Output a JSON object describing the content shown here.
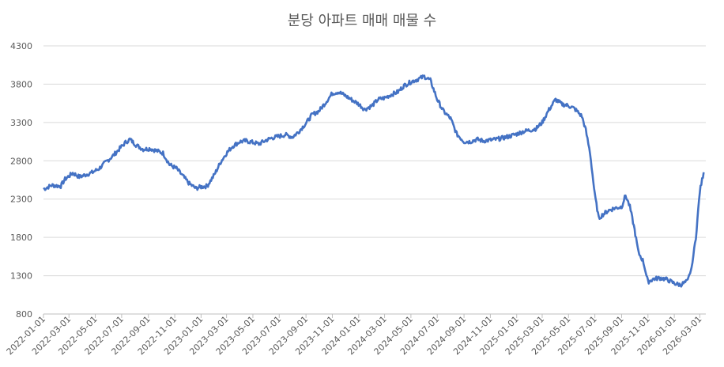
{
  "chart_data": {
    "type": "line",
    "title": "분당 아파트 매매 매물 수",
    "xlabel": "",
    "ylabel": "",
    "ylim": [
      800,
      4300
    ],
    "yticks": [
      800,
      1300,
      1800,
      2300,
      2800,
      3300,
      3800,
      4300
    ],
    "xticks": [
      "2022-01-01",
      "2022-03-01",
      "2022-05-01",
      "2022-07-01",
      "2022-09-01",
      "2022-11-01",
      "2023-01-01",
      "2023-03-01",
      "2023-05-01",
      "2023-07-01",
      "2023-09-01",
      "2023-11-01",
      "2024-01-01",
      "2024-03-01",
      "2024-05-01",
      "2024-07-01",
      "2024-09-01",
      "2024-11-01",
      "2025-01-01",
      "2025-03-01",
      "2025-05-01",
      "2025-07-01",
      "2025-09-01",
      "2025-11-01",
      "2026-01-01",
      "2026-03-01"
    ],
    "x_range": [
      "2022-01-01",
      "2026-03-15"
    ],
    "grid": true,
    "series_color": "#4472c4",
    "series": [
      {
        "x": [
          "2022-01-01",
          "2022-01-20",
          "2022-02-10",
          "2022-02-20",
          "2022-03-10",
          "2022-03-25",
          "2022-04-10",
          "2022-04-25",
          "2022-05-10",
          "2022-05-25",
          "2022-06-10",
          "2022-06-25",
          "2022-07-10",
          "2022-07-20",
          "2022-08-05",
          "2022-08-20",
          "2022-09-05",
          "2022-09-20",
          "2022-10-05",
          "2022-10-20",
          "2022-11-05",
          "2022-11-20",
          "2022-12-05",
          "2022-12-20",
          "2023-01-01",
          "2023-01-15",
          "2023-02-01",
          "2023-02-15",
          "2023-03-01",
          "2023-03-15",
          "2023-04-01",
          "2023-04-15",
          "2023-05-01",
          "2023-05-15",
          "2023-06-01",
          "2023-06-15",
          "2023-07-01",
          "2023-07-15",
          "2023-08-01",
          "2023-08-15",
          "2023-09-01",
          "2023-09-15",
          "2023-10-01",
          "2023-10-15",
          "2023-11-01",
          "2023-11-15",
          "2023-12-01",
          "2023-12-15",
          "2024-01-01",
          "2024-01-15",
          "2024-02-01",
          "2024-02-15",
          "2024-03-01",
          "2024-03-15",
          "2024-04-01",
          "2024-04-15",
          "2024-05-01",
          "2024-05-15",
          "2024-06-01",
          "2024-06-15",
          "2024-07-01",
          "2024-07-15",
          "2024-08-01",
          "2024-08-15",
          "2024-09-01",
          "2024-09-15",
          "2024-10-01",
          "2024-10-15",
          "2024-11-01",
          "2024-11-15",
          "2024-12-01",
          "2024-12-15",
          "2025-01-01",
          "2025-01-15",
          "2025-02-01",
          "2025-02-15",
          "2025-03-01",
          "2025-03-15",
          "2025-04-01",
          "2025-04-15",
          "2025-05-01",
          "2025-05-15",
          "2025-06-01",
          "2025-06-10",
          "2025-06-20",
          "2025-07-01",
          "2025-07-10",
          "2025-07-20",
          "2025-08-01",
          "2025-08-15",
          "2025-09-01",
          "2025-09-10",
          "2025-09-20",
          "2025-10-01",
          "2025-10-10",
          "2025-10-20",
          "2025-11-01",
          "2025-11-15",
          "2025-12-01",
          "2025-12-15",
          "2026-01-01",
          "2026-01-15",
          "2026-02-01",
          "2026-02-10",
          "2026-02-20",
          "2026-03-01",
          "2026-03-10"
        ],
        "y": [
          2430,
          2480,
          2470,
          2560,
          2640,
          2590,
          2620,
          2650,
          2700,
          2780,
          2860,
          2950,
          3040,
          3080,
          3000,
          2950,
          2960,
          2930,
          2900,
          2750,
          2700,
          2600,
          2500,
          2440,
          2460,
          2470,
          2620,
          2780,
          2900,
          2990,
          3050,
          3060,
          3040,
          3020,
          3070,
          3100,
          3120,
          3140,
          3110,
          3180,
          3290,
          3400,
          3450,
          3550,
          3680,
          3700,
          3650,
          3600,
          3540,
          3470,
          3520,
          3600,
          3620,
          3660,
          3700,
          3780,
          3830,
          3860,
          3900,
          3850,
          3600,
          3450,
          3350,
          3150,
          3050,
          3050,
          3080,
          3060,
          3070,
          3080,
          3100,
          3120,
          3150,
          3180,
          3200,
          3220,
          3300,
          3450,
          3600,
          3540,
          3520,
          3480,
          3380,
          3200,
          2900,
          2350,
          2050,
          2100,
          2150,
          2180,
          2200,
          2350,
          2200,
          1900,
          1600,
          1500,
          1220,
          1260,
          1270,
          1250,
          1200,
          1180,
          1230,
          1400,
          1800,
          2400,
          2650
        ]
      }
    ]
  }
}
